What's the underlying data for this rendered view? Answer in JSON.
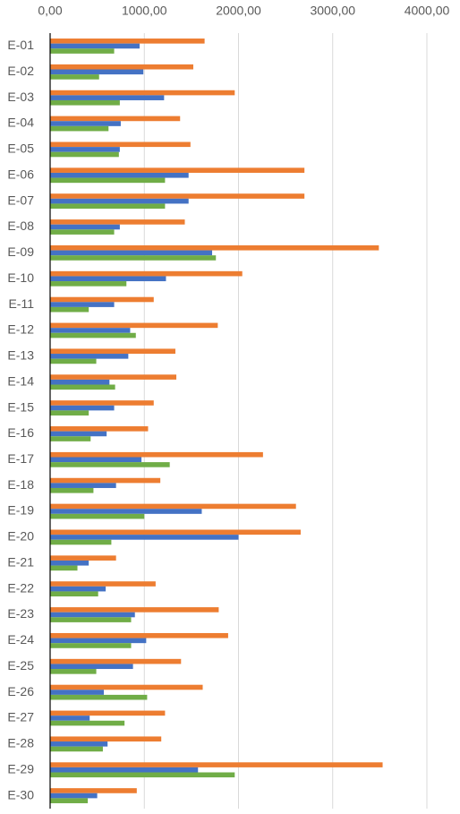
{
  "chart_data": {
    "type": "hbar",
    "categories": [
      "E-01",
      "E-02",
      "E-03",
      "E-04",
      "E-05",
      "E-06",
      "E-07",
      "E-08",
      "E-09",
      "E-10",
      "E-11",
      "E-12",
      "E-13",
      "E-14",
      "E-15",
      "E-16",
      "E-17",
      "E-18",
      "E-19",
      "E-20",
      "E-21",
      "E-22",
      "E-23",
      "E-24",
      "E-25",
      "E-26",
      "E-27",
      "E-28",
      "E-29",
      "E-30"
    ],
    "series": [
      {
        "color": "#ed7d31",
        "values": [
          1640,
          1520,
          1960,
          1380,
          1490,
          2700,
          2700,
          1430,
          3490,
          2040,
          1100,
          1780,
          1330,
          1340,
          1100,
          1040,
          2260,
          1170,
          2610,
          2660,
          700,
          1120,
          1790,
          1890,
          1390,
          1620,
          1220,
          1180,
          3530,
          920
        ]
      },
      {
        "color": "#4472c4",
        "values": [
          950,
          990,
          1210,
          750,
          740,
          1470,
          1470,
          740,
          1720,
          1230,
          680,
          850,
          830,
          630,
          680,
          600,
          970,
          700,
          1610,
          2000,
          410,
          590,
          900,
          1020,
          880,
          570,
          420,
          610,
          1570,
          500
        ]
      },
      {
        "color": "#70ad47",
        "values": [
          680,
          520,
          740,
          620,
          730,
          1220,
          1220,
          680,
          1760,
          810,
          410,
          910,
          490,
          690,
          410,
          430,
          1270,
          460,
          1000,
          650,
          290,
          510,
          860,
          860,
          490,
          1030,
          790,
          560,
          1960,
          400
        ]
      }
    ],
    "xlim": [
      0,
      4000
    ],
    "xticks": [
      {
        "value": 0,
        "label": "0,00"
      },
      {
        "value": 1000,
        "label": "1000,00"
      },
      {
        "value": 2000,
        "label": "2000,00"
      },
      {
        "value": 3000,
        "label": "3000,00"
      },
      {
        "value": 4000,
        "label": "4000,00"
      }
    ],
    "grid": true
  }
}
